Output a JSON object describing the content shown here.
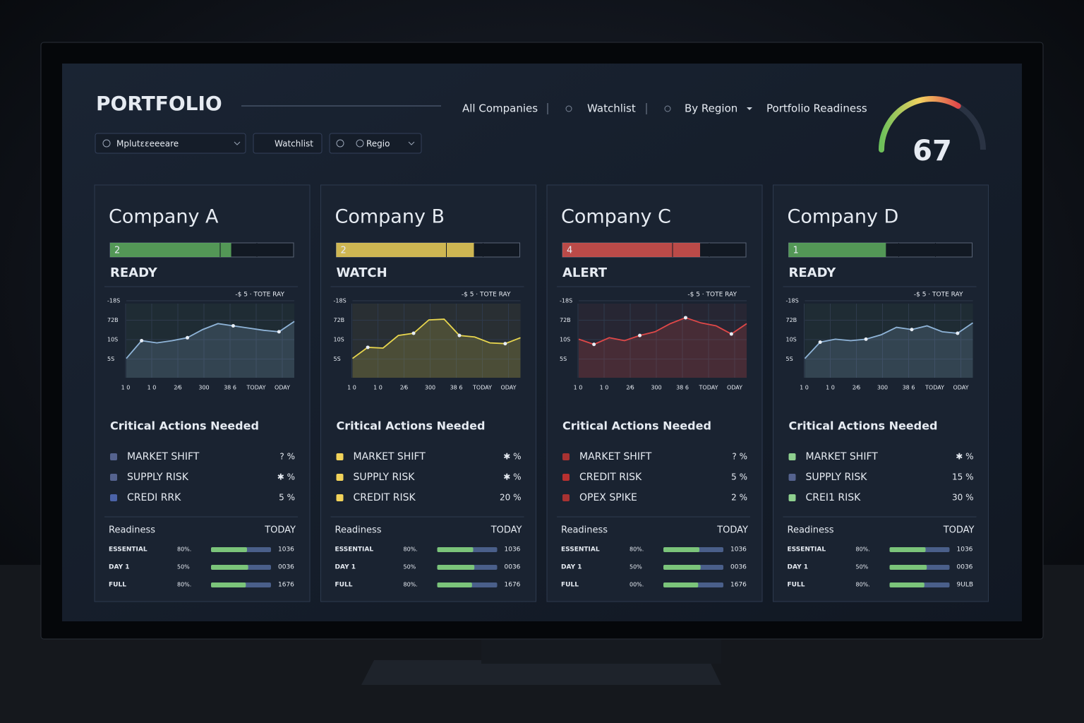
{
  "header": {
    "title": "PORTFOLIO",
    "nav": [
      "All Companies",
      "Watchlist",
      "By Region",
      "Portfolio Readiness"
    ],
    "filters": [
      "Mplutεεeeeare",
      "Watchlist",
      "Regio"
    ]
  },
  "gauge": {
    "value": 67,
    "min": 0,
    "max": 100
  },
  "cards": [
    {
      "name": "Company A",
      "level": "2",
      "status": "READY",
      "color": "#5fae5f",
      "fill": 66,
      "chart": {
        "legend": "-$ 5 · TOTE RAY",
        "yticks": [
          "-18S",
          "72B",
          "10S",
          "5S"
        ],
        "xlabels": [
          "1 0",
          "1 0",
          "2⁄6",
          "300",
          "38 6",
          "TODAY",
          "ODAY"
        ],
        "ylim": [
          0,
          100
        ],
        "color": "#8fb4d8",
        "values": [
          26,
          50,
          47,
          50,
          54,
          65,
          73,
          70,
          67,
          64,
          62,
          76
        ]
      },
      "actions_title": "Critical Actions Needed",
      "actions": [
        {
          "label": "MARKET SHIFT",
          "value": "? %",
          "color": "#55638f"
        },
        {
          "label": "SUPPLY RISK",
          "value": "✱ %",
          "color": "#55638f"
        },
        {
          "label": "CREDI RRK",
          "value": "5 %",
          "color": "#4b63a8"
        }
      ],
      "readiness": {
        "title": "Readiness",
        "when": "TODAY",
        "rows": [
          {
            "label": "ESSENTIAL",
            "pct": "80%.",
            "fill": 60,
            "value": "1036"
          },
          {
            "label": "DAY 1",
            "pct": "50%",
            "fill": 62,
            "value": "0036"
          },
          {
            "label": "FULL",
            "pct": "80%.",
            "fill": 58,
            "value": "1676"
          }
        ]
      }
    },
    {
      "name": "Company B",
      "level": "2",
      "status": "WATCH",
      "color": "#f0d25a",
      "fill": 75,
      "chart": {
        "legend": "-$ 5 · TOTE RAY",
        "yticks": [
          "-18S",
          "72B",
          "10S",
          "5S"
        ],
        "xlabels": [
          "1 0",
          "1 0",
          "2⁄6",
          "300",
          "38 6",
          "TODAY",
          "ODAY"
        ],
        "ylim": [
          0,
          100
        ],
        "color": "#e8d64e",
        "values": [
          26,
          41,
          40,
          57,
          60,
          78,
          79,
          57,
          55,
          47,
          46,
          54
        ]
      },
      "actions_title": "Critical Actions Needed",
      "actions": [
        {
          "label": "MARKET SHIFT",
          "value": "✱ %",
          "color": "#f2d35a"
        },
        {
          "label": "SUPPLY RISK",
          "value": "✱ %",
          "color": "#f2d35a"
        },
        {
          "label": "CREDIT RISK",
          "value": "20 %",
          "color": "#f2d35a"
        }
      ],
      "readiness": {
        "title": "Readiness",
        "when": "TODAY",
        "rows": [
          {
            "label": "ESSENTIAL",
            "pct": "80%.",
            "fill": 60,
            "value": "1036"
          },
          {
            "label": "DAY 1",
            "pct": "50%",
            "fill": 62,
            "value": "0036"
          },
          {
            "label": "FULL",
            "pct": "80%.",
            "fill": 58,
            "value": "1676"
          }
        ]
      }
    },
    {
      "name": "Company C",
      "level": "4",
      "status": "ALERT",
      "color": "#d9534f",
      "fill": 75,
      "chart": {
        "legend": "-$ 5 · TOTE RAY",
        "yticks": [
          "-18S",
          "72B",
          "10S",
          "5S"
        ],
        "xlabels": [
          "1 0",
          "1 0",
          "2⁄6",
          "300",
          "38 6",
          "TODAY",
          "ODAY"
        ],
        "ylim": [
          0,
          100
        ],
        "color": "#e04848",
        "values": [
          52,
          45,
          54,
          50,
          57,
          62,
          73,
          81,
          74,
          70,
          59,
          73
        ]
      },
      "actions_title": "Critical Actions Needed",
      "actions": [
        {
          "label": "MARKET SHIFT",
          "value": "? %",
          "color": "#a83232"
        },
        {
          "label": "CREDIT RISK",
          "value": "5 %",
          "color": "#b83030"
        },
        {
          "label": "OPEX SPIKE",
          "value": "2 %",
          "color": "#a83232"
        }
      ],
      "readiness": {
        "title": "Readiness",
        "when": "TODAY",
        "rows": [
          {
            "label": "ESSENTIAL",
            "pct": "80%.",
            "fill": 60,
            "value": "1036"
          },
          {
            "label": "DAY 1",
            "pct": "50%",
            "fill": 62,
            "value": "0036"
          },
          {
            "label": "FULL",
            "pct": "00%.",
            "fill": 58,
            "value": "1676"
          }
        ]
      }
    },
    {
      "name": "Company D",
      "level": "1",
      "status": "READY",
      "color": "#5fae5f",
      "fill": 53,
      "chart": {
        "legend": "-$ 5 · TOTE RAY",
        "yticks": [
          "-18S",
          "72B",
          "10S",
          "5S"
        ],
        "xlabels": [
          "1 0",
          "1 0",
          "2⁄6",
          "300",
          "38 6",
          "TODAY",
          "ODAY"
        ],
        "ylim": [
          0,
          100
        ],
        "color": "#8fb4d8",
        "values": [
          26,
          48,
          52,
          50,
          52,
          58,
          68,
          65,
          70,
          62,
          60,
          74
        ]
      },
      "actions_title": "Critical Actions Needed",
      "actions": [
        {
          "label": "MARKET SHIFT",
          "value": "✱ %",
          "color": "#8fd08f"
        },
        {
          "label": "SUPPLY RISK",
          "value": "15 %",
          "color": "#55638f"
        },
        {
          "label": "CREI1 RISK",
          "value": "30 %",
          "color": "#8fd08f"
        }
      ],
      "readiness": {
        "title": "Readiness",
        "when": "TODAY",
        "rows": [
          {
            "label": "ESSENTIAL",
            "pct": "80%.",
            "fill": 60,
            "value": "1036"
          },
          {
            "label": "DAY 1",
            "pct": "50%",
            "fill": 62,
            "value": "0036"
          },
          {
            "label": "FULL",
            "pct": "80%.",
            "fill": 58,
            "value": "9ULB"
          }
        ]
      }
    }
  ]
}
